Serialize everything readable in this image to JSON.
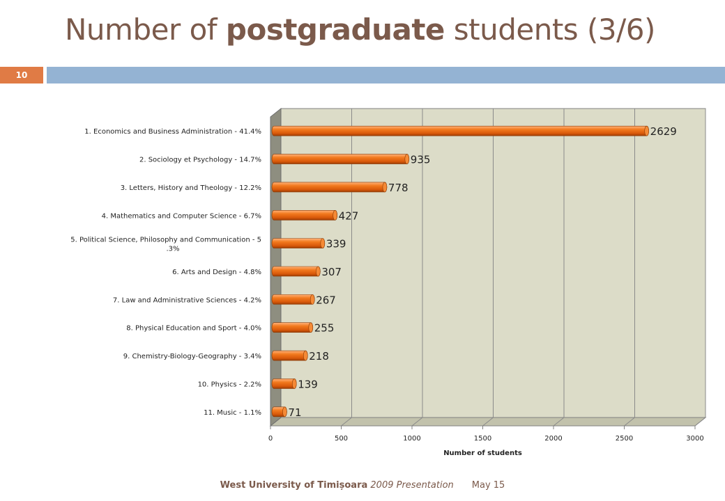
{
  "slide": {
    "title_part1": "Number of ",
    "title_bold": "postgraduate",
    "title_part2": " students (3/6)",
    "slide_number": "10",
    "footer_org": "West University of Timișoara",
    "footer_presentation": " 2009 Presentation",
    "footer_date": "May 15"
  },
  "colors": {
    "title": "#7b5a4b",
    "accent_orange": "#e07b45",
    "band_blue": "#94b3d3",
    "bar_orange": "#f07316",
    "plot_background": "#dcdcc8"
  },
  "chart_data": {
    "type": "bar",
    "orientation": "horizontal",
    "style": "3d-cylinder",
    "categories": [
      "1. Economics and Business Administration - 41.4%",
      "2. Sociology et Psychology - 14.7%",
      "3. Letters, History and Theology - 12.2%",
      "4. Mathematics and Computer Science - 6.7%",
      "5. Political Science, Philosophy and Communication - 5.3%",
      "6. Arts and Design - 4.8%",
      "7. Law and Administrative Sciences - 4.2%",
      "8. Physical Education and Sport - 4.0%",
      "9. Chemistry-Biology-Geography - 3.4%",
      "10. Physics - 2.2%",
      "11. Music - 1.1%"
    ],
    "values": [
      2629,
      935,
      778,
      427,
      339,
      307,
      267,
      255,
      218,
      139,
      71
    ],
    "data_labels": [
      "2629",
      "935",
      "778",
      "427",
      "339",
      "307",
      "267",
      "255",
      "218",
      "139",
      "71"
    ],
    "xlabel": "Number of students",
    "xlim": [
      0,
      3000
    ],
    "xticks": [
      0,
      500,
      1000,
      1500,
      2000,
      2500,
      3000
    ],
    "xtick_labels": [
      "0",
      "500",
      "1000",
      "1500",
      "2000",
      "2500",
      "3000"
    ],
    "grid": true,
    "legend": "none"
  }
}
